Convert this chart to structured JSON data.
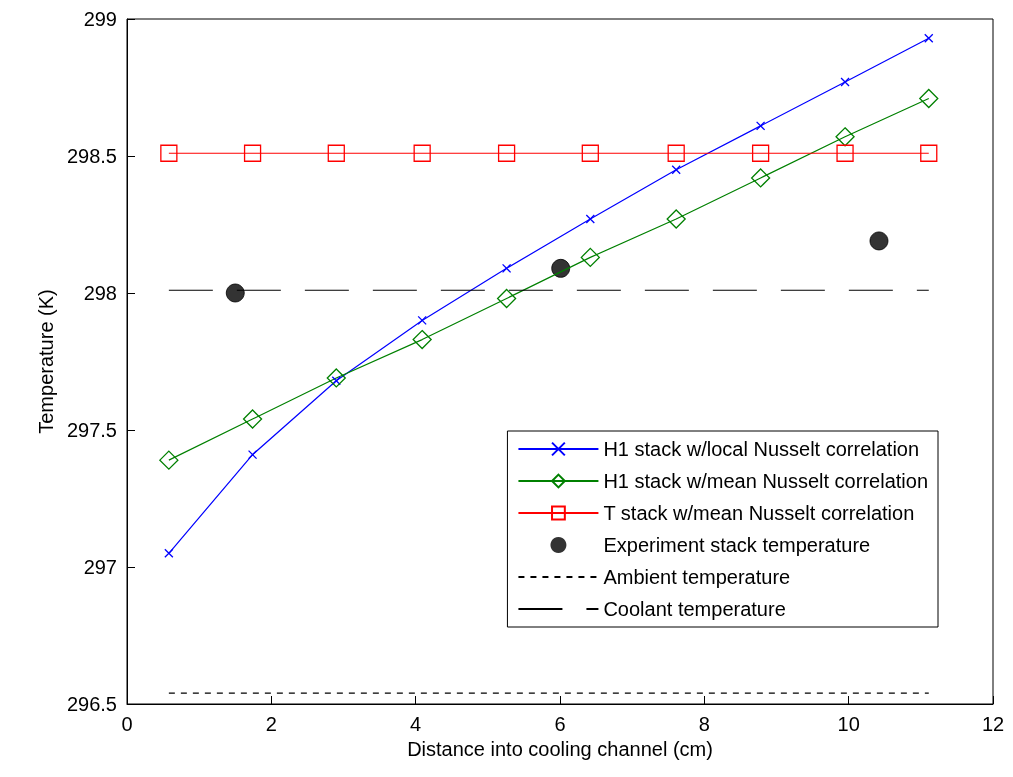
{
  "chart_data": {
    "type": "line",
    "xlabel": "Distance into cooling channel (cm)",
    "ylabel": "Temperature (K)",
    "xlim": [
      0,
      12
    ],
    "xticks": [
      0,
      2,
      4,
      6,
      8,
      10,
      12
    ],
    "ylim": [
      296.5,
      299
    ],
    "yticks": [
      296.5,
      297,
      297.5,
      298,
      298.5,
      299
    ],
    "grid": false,
    "legend": "bottom right",
    "series": [
      {
        "name": "H1 stack w/local Nusselt correlation",
        "color": "#0000ff",
        "marker": "cross",
        "line_style": "solid",
        "x": [
          0.58,
          1.74,
          2.9,
          4.09,
          5.26,
          6.42,
          7.61,
          8.78,
          9.95,
          11.11
        ],
        "values": [
          297.05,
          297.41,
          297.68,
          297.9,
          298.09,
          298.27,
          298.45,
          298.61,
          298.77,
          298.93
        ]
      },
      {
        "name": "H1 stack w/mean Nusselt correlation",
        "color": "#008000",
        "marker": "diamond",
        "line_style": "solid",
        "x": [
          0.58,
          1.74,
          2.9,
          4.09,
          5.26,
          6.42,
          7.61,
          8.78,
          9.95,
          11.11
        ],
        "values": [
          297.39,
          297.54,
          297.69,
          297.83,
          297.98,
          298.13,
          298.27,
          298.42,
          298.57,
          298.71
        ]
      },
      {
        "name": "T stack w/mean Nusselt correlation",
        "color": "#ff0000",
        "marker": "square",
        "line_style": "solid",
        "x": [
          0.58,
          1.74,
          2.9,
          4.09,
          5.26,
          6.42,
          7.61,
          8.78,
          9.95,
          11.11
        ],
        "values": [
          298.51,
          298.51,
          298.51,
          298.51,
          298.51,
          298.51,
          298.51,
          298.51,
          298.51,
          298.51
        ]
      },
      {
        "name": "Experiment stack temperature",
        "type": "scatter",
        "color": "#000000",
        "marker": "circle",
        "x": [
          1.5,
          6.01,
          10.42
        ],
        "values": [
          298.0,
          298.09,
          298.19
        ]
      },
      {
        "name": "Ambient temperature",
        "color": "#000000",
        "marker": "none",
        "line_style": "dotted",
        "x": [
          0.58,
          11.11
        ],
        "values": [
          296.54,
          296.54
        ]
      },
      {
        "name": "Coolant temperature",
        "color": "#000000",
        "marker": "none",
        "line_style": "dashed",
        "x": [
          0.58,
          11.11
        ],
        "values": [
          298.01,
          298.01
        ]
      }
    ]
  }
}
